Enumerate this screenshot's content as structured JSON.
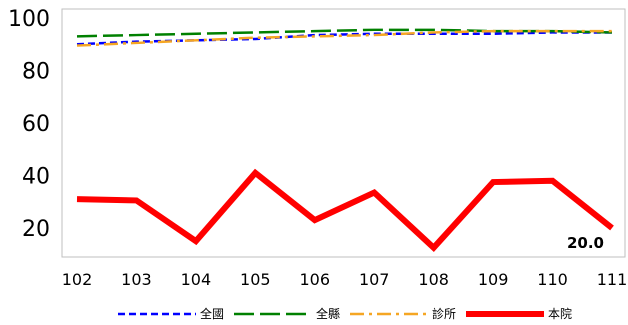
{
  "chart_data": {
    "type": "line",
    "categories": [
      "102",
      "103",
      "104",
      "105",
      "106",
      "107",
      "108",
      "109",
      "110",
      "111"
    ],
    "series": [
      {
        "name": "全國",
        "values": [
          90,
          91,
          91.5,
          92,
          93.5,
          94,
          94,
          94,
          94.5,
          94.5
        ],
        "color": "#0000ff",
        "style": "dashed"
      },
      {
        "name": "全縣",
        "values": [
          93,
          93.5,
          94,
          94.5,
          95,
          95.5,
          95.5,
          95,
          95,
          94.5
        ],
        "color": "#008000",
        "style": "long-dash"
      },
      {
        "name": "診所",
        "values": [
          89.5,
          90.5,
          91.5,
          92.5,
          93,
          93.5,
          94.5,
          95,
          95,
          95
        ],
        "color": "#f5a623",
        "style": "dash-dot"
      },
      {
        "name": "本院",
        "values": [
          31,
          30.5,
          15,
          41,
          23,
          33.5,
          12.5,
          37.5,
          38,
          20
        ],
        "color": "#ff0000",
        "style": "solid"
      }
    ],
    "yticks": [
      "20",
      "40",
      "60",
      "80",
      "100"
    ],
    "ylim": [
      10,
      100
    ],
    "annotation": "20.0",
    "legend_position": "bottom",
    "grid": false
  }
}
